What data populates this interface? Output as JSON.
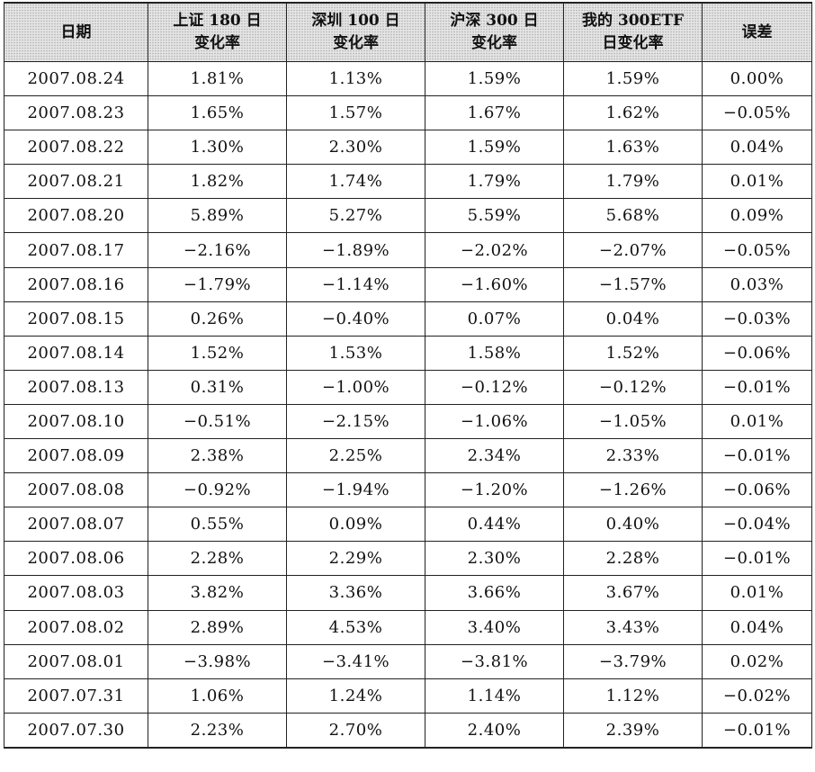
{
  "table": {
    "headers": [
      [
        "日期"
      ],
      [
        "上证 180 日",
        "变化率"
      ],
      [
        "深圳 100 日",
        "变化率"
      ],
      [
        "沪深 300 日",
        "变化率"
      ],
      [
        "我的 300ETF",
        "日变化率"
      ],
      [
        "误差"
      ]
    ],
    "rows": [
      [
        "2007.08.24",
        "1.81%",
        "1.13%",
        "1.59%",
        "1.59%",
        "0.00%"
      ],
      [
        "2007.08.23",
        "1.65%",
        "1.57%",
        "1.67%",
        "1.62%",
        "−0.05%"
      ],
      [
        "2007.08.22",
        "1.30%",
        "2.30%",
        "1.59%",
        "1.63%",
        "0.04%"
      ],
      [
        "2007.08.21",
        "1.82%",
        "1.74%",
        "1.79%",
        "1.79%",
        "0.01%"
      ],
      [
        "2007.08.20",
        "5.89%",
        "5.27%",
        "5.59%",
        "5.68%",
        "0.09%"
      ],
      [
        "2007.08.17",
        "−2.16%",
        "−1.89%",
        "−2.02%",
        "−2.07%",
        "−0.05%"
      ],
      [
        "2007.08.16",
        "−1.79%",
        "−1.14%",
        "−1.60%",
        "−1.57%",
        "0.03%"
      ],
      [
        "2007.08.15",
        "0.26%",
        "−0.40%",
        "0.07%",
        "0.04%",
        "−0.03%"
      ],
      [
        "2007.08.14",
        "1.52%",
        "1.53%",
        "1.58%",
        "1.52%",
        "−0.06%"
      ],
      [
        "2007.08.13",
        "0.31%",
        "−1.00%",
        "−0.12%",
        "−0.12%",
        "−0.01%"
      ],
      [
        "2007.08.10",
        "−0.51%",
        "−2.15%",
        "−1.06%",
        "−1.05%",
        "0.01%"
      ],
      [
        "2007.08.09",
        "2.38%",
        "2.25%",
        "2.34%",
        "2.33%",
        "−0.01%"
      ],
      [
        "2007.08.08",
        "−0.92%",
        "−1.94%",
        "−1.20%",
        "−1.26%",
        "−0.06%"
      ],
      [
        "2007.08.07",
        "0.55%",
        "0.09%",
        "0.44%",
        "0.40%",
        "−0.04%"
      ],
      [
        "2007.08.06",
        "2.28%",
        "2.29%",
        "2.30%",
        "2.28%",
        "−0.01%"
      ],
      [
        "2007.08.03",
        "3.82%",
        "3.36%",
        "3.66%",
        "3.67%",
        "0.01%"
      ],
      [
        "2007.08.02",
        "2.89%",
        "4.53%",
        "3.40%",
        "3.43%",
        "0.04%"
      ],
      [
        "2007.08.01",
        "−3.98%",
        "−3.41%",
        "−3.81%",
        "−3.79%",
        "0.02%"
      ],
      [
        "2007.07.31",
        "1.06%",
        "1.24%",
        "1.14%",
        "1.12%",
        "−0.02%"
      ],
      [
        "2007.07.30",
        "2.23%",
        "2.70%",
        "2.40%",
        "2.39%",
        "−0.01%"
      ]
    ]
  }
}
